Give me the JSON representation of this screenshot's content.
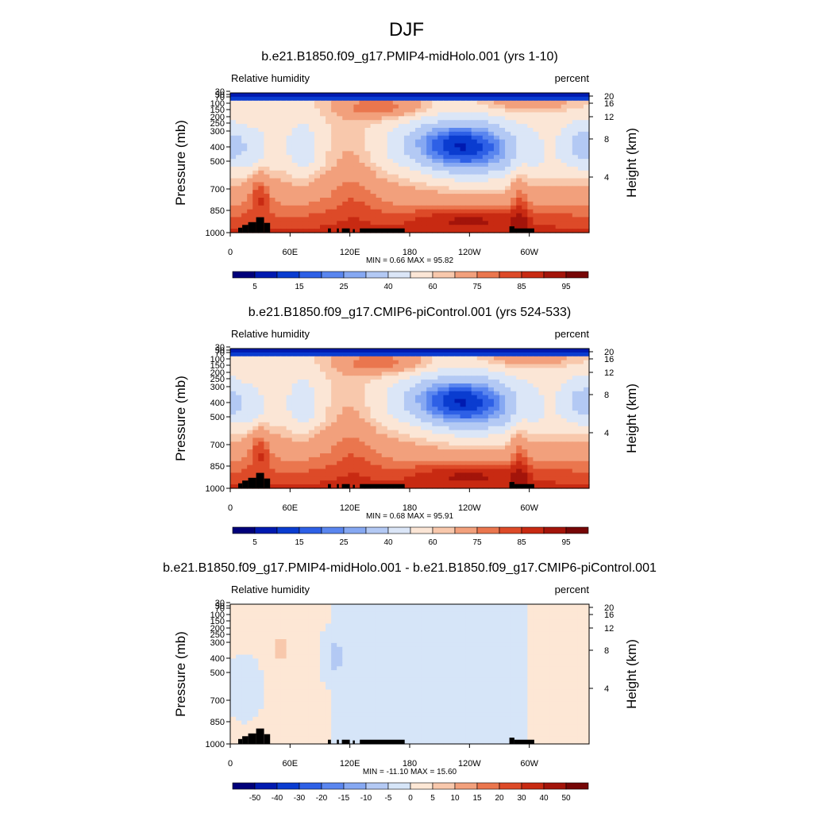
{
  "figure_title": "DJF",
  "colors": {
    "rh_scale": [
      "#00007a",
      "#001ab0",
      "#0a3cd0",
      "#2e60e6",
      "#5a86ef",
      "#86a8f2",
      "#b3c9f4",
      "#dbe6f7",
      "#fbe6d6",
      "#f8c8ac",
      "#f2a07c",
      "#ea764e",
      "#dd4a28",
      "#c82a12",
      "#a3140a",
      "#760606"
    ],
    "diff_scale": [
      "#00007a",
      "#001ab0",
      "#0a3cd0",
      "#2e60e6",
      "#5a86ef",
      "#86a8f2",
      "#b3c9f4",
      "#d6e5f8",
      "#fde7d5",
      "#f8c8ac",
      "#f2a07c",
      "#ea764e",
      "#dd4a28",
      "#c82a12",
      "#a3140a",
      "#760606"
    ],
    "terrain": "#000000"
  },
  "chart_data": [
    {
      "type": "heatmap",
      "title": "b.e21.B1850.f09_g17.PMIP4-midHolo.001 (yrs 1-10)",
      "left_label": "Relative humidity",
      "right_label": "percent",
      "ylabel": "Pressure (mb)",
      "ylabel_right": "Height (km)",
      "x_ticks": [
        "0",
        "60E",
        "120E",
        "180",
        "120W",
        "60W"
      ],
      "x_tick_values": [
        0,
        60,
        120,
        180,
        240,
        300
      ],
      "xlim": [
        0,
        360
      ],
      "y_ticks": [
        "30",
        "50",
        "70",
        "100",
        "150",
        "200",
        "250",
        "300",
        "400",
        "500",
        "700",
        "850",
        "1000"
      ],
      "y_tick_values": [
        30,
        50,
        70,
        100,
        150,
        200,
        250,
        300,
        400,
        500,
        700,
        850,
        1000
      ],
      "ylim": [
        30,
        1000
      ],
      "y_scale": "log",
      "height_ticks": [
        "20",
        "16",
        "12",
        "8",
        "4"
      ],
      "height_tick_values": [
        20,
        16,
        12,
        8,
        4
      ],
      "stats": "MIN =   0.66  MAX =  95.82",
      "scale": "rh",
      "colorbar_labels": [
        "5",
        "15",
        "25",
        "40",
        "60",
        "75",
        "85",
        "95"
      ],
      "colorbar_label_boxes": [
        1,
        3,
        5,
        7,
        9,
        11,
        13,
        15
      ]
    },
    {
      "type": "heatmap",
      "title": "b.e21.B1850.f09_g17.CMIP6-piControl.001 (yrs 524-533)",
      "left_label": "Relative humidity",
      "right_label": "percent",
      "ylabel": "Pressure (mb)",
      "ylabel_right": "Height (km)",
      "x_ticks": [
        "0",
        "60E",
        "120E",
        "180",
        "120W",
        "60W"
      ],
      "x_tick_values": [
        0,
        60,
        120,
        180,
        240,
        300
      ],
      "xlim": [
        0,
        360
      ],
      "y_ticks": [
        "30",
        "50",
        "70",
        "100",
        "150",
        "200",
        "250",
        "300",
        "400",
        "500",
        "700",
        "850",
        "1000"
      ],
      "y_tick_values": [
        30,
        50,
        70,
        100,
        150,
        200,
        250,
        300,
        400,
        500,
        700,
        850,
        1000
      ],
      "ylim": [
        30,
        1000
      ],
      "y_scale": "log",
      "height_ticks": [
        "20",
        "16",
        "12",
        "8",
        "4"
      ],
      "height_tick_values": [
        20,
        16,
        12,
        8,
        4
      ],
      "stats": "MIN =   0.68  MAX =  95.91",
      "scale": "rh",
      "colorbar_labels": [
        "5",
        "15",
        "25",
        "40",
        "60",
        "75",
        "85",
        "95"
      ],
      "colorbar_label_boxes": [
        1,
        3,
        5,
        7,
        9,
        11,
        13,
        15
      ]
    },
    {
      "type": "heatmap",
      "title": "b.e21.B1850.f09_g17.PMIP4-midHolo.001 - b.e21.B1850.f09_g17.CMIP6-piControl.001",
      "left_label": "Relative humidity",
      "right_label": "percent",
      "ylabel": "Pressure (mb)",
      "ylabel_right": "Height (km)",
      "x_ticks": [
        "0",
        "60E",
        "120E",
        "180",
        "120W",
        "60W"
      ],
      "x_tick_values": [
        0,
        60,
        120,
        180,
        240,
        300
      ],
      "xlim": [
        0,
        360
      ],
      "y_ticks": [
        "30",
        "50",
        "70",
        "100",
        "150",
        "200",
        "250",
        "300",
        "400",
        "500",
        "700",
        "850",
        "1000"
      ],
      "y_tick_values": [
        30,
        50,
        70,
        100,
        150,
        200,
        250,
        300,
        400,
        500,
        700,
        850,
        1000
      ],
      "ylim": [
        30,
        1000
      ],
      "y_scale": "log",
      "height_ticks": [
        "20",
        "16",
        "12",
        "8",
        "4"
      ],
      "height_tick_values": [
        20,
        16,
        12,
        8,
        4
      ],
      "stats": "MIN = -11.10  MAX =  15.60",
      "scale": "diff",
      "colorbar_labels": [
        "-50",
        "-40",
        "-30",
        "-20",
        "-15",
        "-10",
        "-5",
        "0",
        "5",
        "10",
        "15",
        "20",
        "30",
        "40",
        "50"
      ],
      "colorbar_label_boxes": [
        1,
        2,
        3,
        4,
        5,
        6,
        7,
        8,
        9,
        10,
        11,
        12,
        13,
        14,
        15
      ]
    }
  ]
}
